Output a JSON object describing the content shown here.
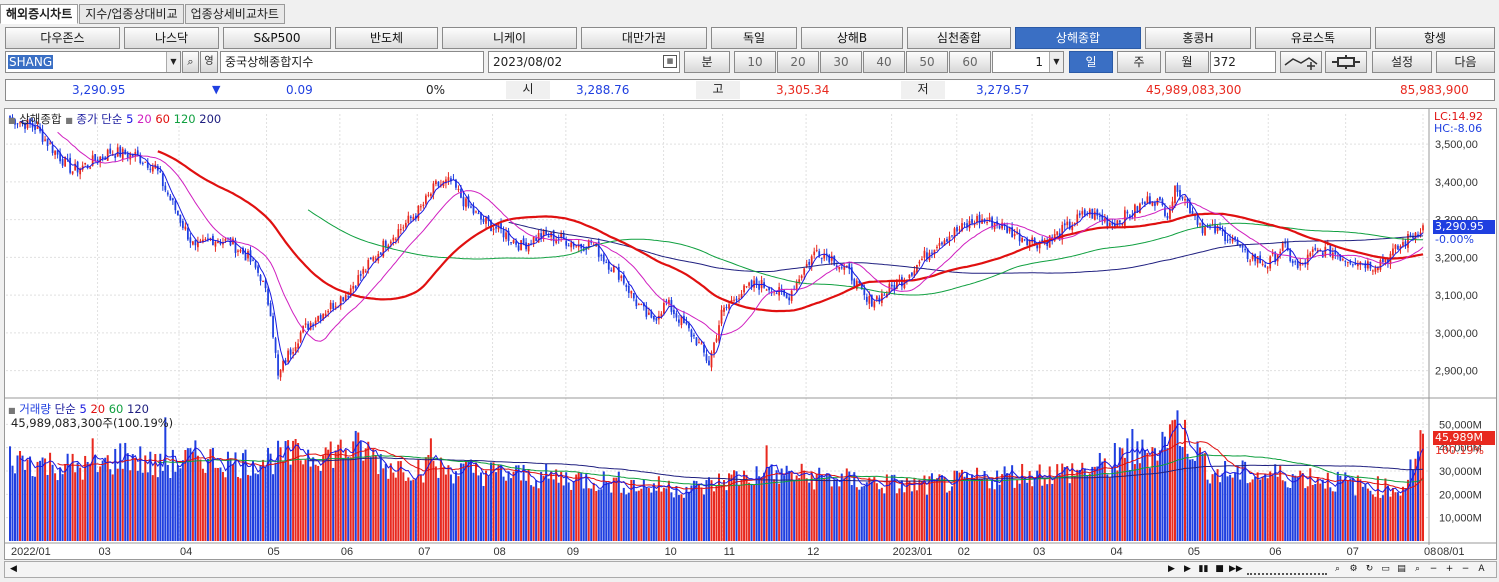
{
  "tabs": [
    "해외증시차트",
    "지수/업종상대비교",
    "업종상세비교차트"
  ],
  "markets": [
    "다우존스",
    "나스닥",
    "S&P500",
    "반도체",
    "니케이",
    "대만가권",
    "독일",
    "상해B",
    "심천종합",
    "상해종합",
    "홍콩H",
    "유로스톡",
    "항셍"
  ],
  "selected_market": "상해종합",
  "controls": {
    "code": "SHANG",
    "name": "중국상해종합지수",
    "date": "2023/08/02",
    "min_label": "분",
    "periods": [
      "10",
      "20",
      "30",
      "40",
      "50",
      "60"
    ],
    "multiplier": "1",
    "day_label": "일",
    "week_label": "주",
    "month_label": "월",
    "count": "372",
    "settings_label": "설정",
    "next_label": "다음"
  },
  "quote": {
    "price": "3,290.95",
    "change": "0.09",
    "change_pct": "0%",
    "open_label": "시",
    "open": "3,288.76",
    "high_label": "고",
    "high": "3,305.34",
    "low_label": "저",
    "low": "3,279.57",
    "amount": "45,989,083,300",
    "volume": "85,983,900"
  },
  "colors": {
    "up": "#e8291f",
    "down": "#1f3fe0",
    "ma5": "#1a1ae0",
    "ma20": "#d020c0",
    "ma60": "#e01010",
    "ma120": "#10a040",
    "ma200": "#202080"
  },
  "price_legend": {
    "name": "상해종합",
    "ma_label": "종가 단순",
    "periods": [
      "5",
      "20",
      "60",
      "120",
      "200"
    ]
  },
  "price_axis": {
    "lc": "LC:14.92",
    "hc": "HC:-8.06",
    "last": "3,290.95",
    "last_pct": "-0.00%"
  },
  "volume_legend": {
    "name": "거래량",
    "ma_label": "단순",
    "periods": [
      "5",
      "20",
      "60",
      "120"
    ],
    "info": "45,989,083,300주(100.19%)"
  },
  "volume_axis": {
    "last": "45,989M",
    "last_pct": "100.19%"
  },
  "chart_data": [
    {
      "type": "candlestick",
      "title": "상해종합",
      "ylim": [
        2830,
        3580
      ],
      "yticks": [
        "3,500,00",
        "3,400,00",
        "3,300,00",
        "3,200,00",
        "3,100,00",
        "3,000,00",
        "2,900,00"
      ],
      "ytick_values": [
        3500,
        3400,
        3300,
        3200,
        3100,
        3000,
        2900
      ],
      "x_labels": [
        "2022/01",
        "03",
        "04",
        "05",
        "06",
        "07",
        "08",
        "09",
        "10",
        "11",
        "12",
        "2023/01",
        "02",
        "03",
        "04",
        "05",
        "06",
        "07",
        "08",
        "08/01"
      ],
      "close_path": [
        [
          0,
          3570
        ],
        [
          10,
          3545
        ],
        [
          18,
          3480
        ],
        [
          25,
          3430
        ],
        [
          32,
          3450
        ],
        [
          40,
          3480
        ],
        [
          50,
          3470
        ],
        [
          58,
          3440
        ],
        [
          62,
          3380
        ],
        [
          68,
          3300
        ],
        [
          74,
          3220
        ],
        [
          80,
          3250
        ],
        [
          88,
          3240
        ],
        [
          95,
          3200
        ],
        [
          100,
          3150
        ],
        [
          104,
          3060
        ],
        [
          107,
          2880
        ],
        [
          110,
          2930
        ],
        [
          116,
          3000
        ],
        [
          122,
          3040
        ],
        [
          128,
          3070
        ],
        [
          135,
          3110
        ],
        [
          142,
          3170
        ],
        [
          150,
          3240
        ],
        [
          158,
          3290
        ],
        [
          164,
          3330
        ],
        [
          170,
          3390
        ],
        [
          176,
          3400
        ],
        [
          182,
          3340
        ],
        [
          188,
          3300
        ],
        [
          196,
          3270
        ],
        [
          204,
          3230
        ],
        [
          212,
          3260
        ],
        [
          220,
          3250
        ],
        [
          228,
          3230
        ],
        [
          232,
          3240
        ],
        [
          238,
          3190
        ],
        [
          244,
          3150
        ],
        [
          250,
          3080
        ],
        [
          256,
          3030
        ],
        [
          262,
          3080
        ],
        [
          268,
          3030
        ],
        [
          274,
          2980
        ],
        [
          279,
          2920
        ],
        [
          284,
          3050
        ],
        [
          290,
          3100
        ],
        [
          298,
          3130
        ],
        [
          304,
          3120
        ],
        [
          310,
          3090
        ],
        [
          316,
          3160
        ],
        [
          322,
          3220
        ],
        [
          328,
          3200
        ],
        [
          336,
          3150
        ],
        [
          342,
          3080
        ],
        [
          348,
          3100
        ],
        [
          356,
          3140
        ],
        [
          362,
          3180
        ],
        [
          370,
          3240
        ],
        [
          378,
          3270
        ],
        [
          386,
          3300
        ],
        [
          394,
          3290
        ],
        [
          402,
          3260
        ],
        [
          410,
          3240
        ],
        [
          416,
          3250
        ],
        [
          422,
          3280
        ],
        [
          430,
          3320
        ],
        [
          440,
          3290
        ],
        [
          448,
          3320
        ],
        [
          456,
          3360
        ],
        [
          462,
          3320
        ],
        [
          466,
          3390
        ],
        [
          470,
          3340
        ],
        [
          476,
          3280
        ],
        [
          482,
          3270
        ],
        [
          488,
          3250
        ],
        [
          492,
          3210
        ],
        [
          496,
          3200
        ],
        [
          502,
          3180
        ],
        [
          508,
          3230
        ],
        [
          514,
          3170
        ],
        [
          520,
          3210
        ],
        [
          526,
          3220
        ],
        [
          532,
          3200
        ],
        [
          538,
          3190
        ],
        [
          544,
          3180
        ],
        [
          550,
          3200
        ],
        [
          555,
          3230
        ],
        [
          560,
          3260
        ],
        [
          564,
          3285
        ]
      ],
      "ma_period_labels": [
        "5",
        "20",
        "60",
        "120",
        "200"
      ]
    },
    {
      "type": "bar",
      "title": "거래량",
      "ylim": [
        0,
        60000
      ],
      "yticks": [
        "50,000M",
        "40,000M",
        "30,000M",
        "20,000M",
        "10,000M"
      ],
      "ytick_values": [
        50000,
        40000,
        30000,
        20000,
        10000
      ],
      "volume_path": [
        [
          0,
          36000
        ],
        [
          20,
          33000
        ],
        [
          35,
          32000
        ],
        [
          46,
          38000
        ],
        [
          60,
          32000
        ],
        [
          75,
          37000
        ],
        [
          90,
          34000
        ],
        [
          110,
          37000
        ],
        [
          130,
          39000
        ],
        [
          140,
          41000
        ],
        [
          150,
          33000
        ],
        [
          165,
          32000
        ],
        [
          180,
          31000
        ],
        [
          200,
          29000
        ],
        [
          230,
          27000
        ],
        [
          255,
          24000
        ],
        [
          275,
          23000
        ],
        [
          290,
          28000
        ],
        [
          310,
          29000
        ],
        [
          330,
          27000
        ],
        [
          340,
          26000
        ],
        [
          360,
          24000
        ],
        [
          380,
          26000
        ],
        [
          400,
          29000
        ],
        [
          420,
          30000
        ],
        [
          440,
          33000
        ],
        [
          456,
          40000
        ],
        [
          466,
          50000
        ],
        [
          480,
          30000
        ],
        [
          500,
          29000
        ],
        [
          520,
          28000
        ],
        [
          540,
          24000
        ],
        [
          556,
          23000
        ],
        [
          564,
          45989
        ]
      ],
      "spikes": [
        [
          33,
          44000
        ],
        [
          62,
          53000
        ],
        [
          115,
          42000
        ],
        [
          168,
          44000
        ],
        [
          302,
          41000
        ],
        [
          441,
          42000
        ],
        [
          446,
          44000
        ],
        [
          448,
          48000
        ],
        [
          463,
          50000
        ],
        [
          466,
          56000
        ],
        [
          564,
          45989
        ]
      ]
    }
  ]
}
